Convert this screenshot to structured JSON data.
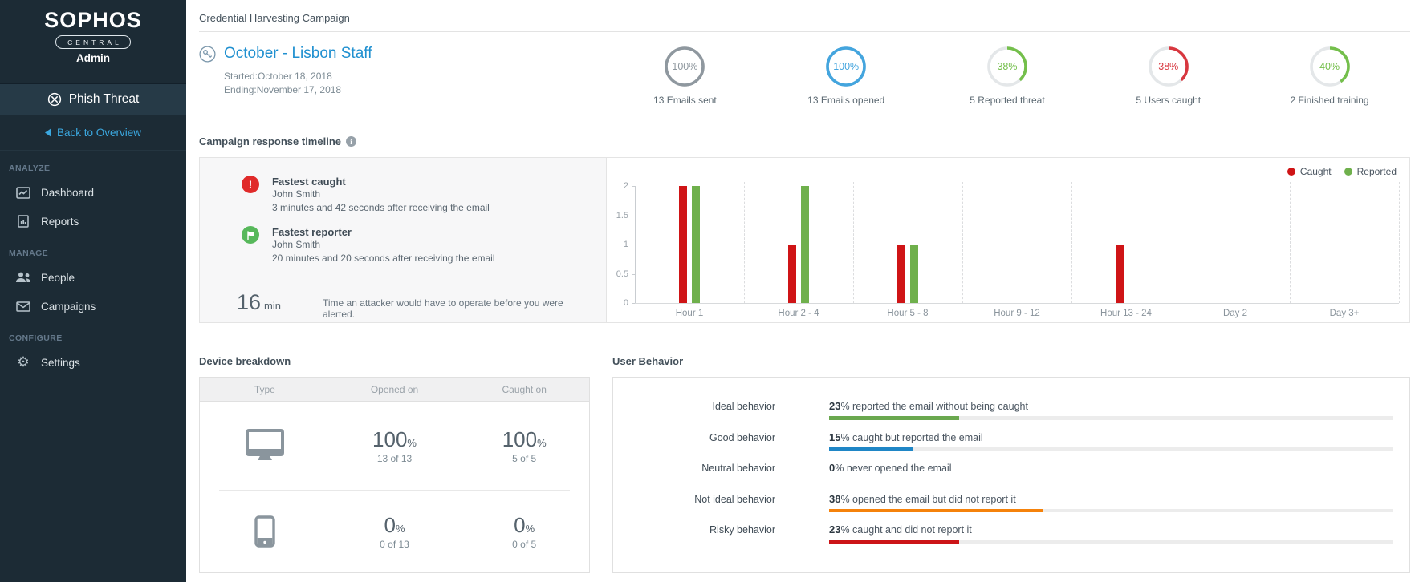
{
  "page": {
    "title": "Credential Harvesting Campaign"
  },
  "sidebar": {
    "brand": "SOPHOS",
    "brand_sub": "CENTRAL",
    "brand_role": "Admin",
    "app_name": "Phish Threat",
    "back_label": "Back to Overview",
    "sections": [
      {
        "label": "ANALYZE",
        "items": [
          {
            "label": "Dashboard",
            "icon": "dashboard-icon"
          },
          {
            "label": "Reports",
            "icon": "reports-icon"
          }
        ]
      },
      {
        "label": "MANAGE",
        "items": [
          {
            "label": "People",
            "icon": "people-icon"
          },
          {
            "label": "Campaigns",
            "icon": "campaigns-icon"
          }
        ]
      },
      {
        "label": "CONFIGURE",
        "items": [
          {
            "label": "Settings",
            "icon": "settings-icon"
          }
        ]
      }
    ]
  },
  "campaign": {
    "name": "October - Lisbon Staff",
    "started": "Started:October 18, 2018",
    "ending": "Ending:November 17, 2018",
    "stats": [
      {
        "pct": 100,
        "label": "13 Emails sent",
        "color": "#8f989f"
      },
      {
        "pct": 100,
        "label": "13 Emails opened",
        "color": "#44a5de"
      },
      {
        "pct": 38,
        "label": "5 Reported threat",
        "color": "#74bf4b"
      },
      {
        "pct": 38,
        "label": "5 Users caught",
        "color": "#d8373f"
      },
      {
        "pct": 40,
        "label": "2 Finished training",
        "color": "#74bf4b"
      }
    ]
  },
  "timeline": {
    "title": "Campaign response timeline",
    "events": [
      {
        "icon": "alert-icon",
        "color": "#e02a2a",
        "title": "Fastest caught",
        "name": "John Smith",
        "detail": "3 minutes and 42 seconds after receiving the email"
      },
      {
        "icon": "report-icon",
        "color": "#57b85b",
        "title": "Fastest reporter",
        "name": "John Smith",
        "detail": "20 minutes and 20 seconds after receiving the email"
      }
    ],
    "attacker_value": "16",
    "attacker_unit": "min",
    "attacker_caption": "Time an attacker would have to operate before you were alerted."
  },
  "chart_data": {
    "type": "bar",
    "title": "Campaign response timeline",
    "categories": [
      "Hour 1",
      "Hour 2 - 4",
      "Hour 5 - 8",
      "Hour 9 - 12",
      "Hour 13 - 24",
      "Day 2",
      "Day 3+"
    ],
    "series": [
      {
        "name": "Caught",
        "color": "#cf1416",
        "values": [
          2,
          1,
          1,
          0,
          1,
          0,
          0
        ]
      },
      {
        "name": "Reported",
        "color": "#6fb04c",
        "values": [
          2,
          2,
          1,
          0,
          0,
          0,
          0
        ]
      }
    ],
    "yticks": [
      0,
      0.5,
      1,
      1.5,
      2
    ],
    "ylim": [
      0,
      2
    ],
    "legend_position": "top-right",
    "grid": "dashed-vertical"
  },
  "device": {
    "title": "Device breakdown",
    "columns": [
      "Type",
      "Opened on",
      "Caught on"
    ],
    "rows": [
      {
        "type": "desktop",
        "icon": "desktop-icon",
        "cells": [
          {
            "pct": "100",
            "detail": "13 of 13"
          },
          {
            "pct": "100",
            "detail": "5 of 5"
          }
        ]
      },
      {
        "type": "mobile",
        "icon": "mobile-icon",
        "cells": [
          {
            "pct": "0",
            "detail": "0 of 13"
          },
          {
            "pct": "0",
            "detail": "0 of 5"
          }
        ]
      }
    ]
  },
  "behavior": {
    "title": "User Behavior",
    "rows": [
      {
        "label": "Ideal behavior",
        "pct": 23,
        "text": "reported the email without being caught",
        "color": "#6aa84f"
      },
      {
        "label": "Good behavior",
        "pct": 15,
        "text": "caught but reported the email",
        "color": "#1f86c6"
      },
      {
        "label": "Neutral behavior",
        "pct": 0,
        "text": "never opened the email",
        "color": "#999999"
      },
      {
        "label": "Not ideal behavior",
        "pct": 38,
        "text": "opened the email but did not report it",
        "color": "#f5820b"
      },
      {
        "label": "Risky behavior",
        "pct": 23,
        "text": "caught and did not report it",
        "color": "#cc1417"
      }
    ]
  }
}
